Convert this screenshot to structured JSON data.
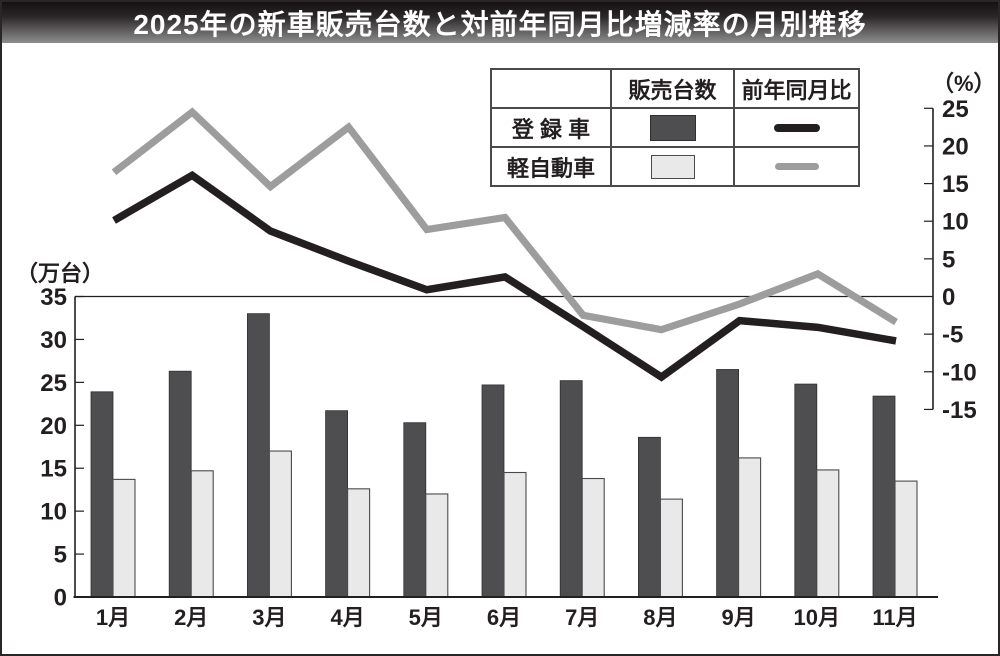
{
  "title": "2025年の新車販売台数と対前年同月比増減率の月別推移",
  "axes": {
    "left_unit": "（万台）",
    "right_unit": "（%）"
  },
  "legend": {
    "header_sales": "販売台数",
    "header_yoy": "前年同月比",
    "registered_label": "登 録 車",
    "kei_label": "軽自動車",
    "registered_bar_swatch": "dark-gray-bar",
    "kei_bar_swatch": "light-gray-bar",
    "registered_line_swatch": "black-line",
    "kei_line_swatch": "gray-line"
  },
  "colors": {
    "registered_bar": "#4e4e50",
    "kei_bar": "#e9e9e9",
    "registered_line": "#231f20",
    "kei_line": "#9d9d9d",
    "axis": "#231f20",
    "title_text": "#ffffff"
  },
  "chart_data": {
    "type": "bar+line combo",
    "title": "2025年の新車販売台数と対前年同月比増減率の月別推移",
    "categories": [
      "1月",
      "2月",
      "3月",
      "4月",
      "5月",
      "6月",
      "7月",
      "8月",
      "9月",
      "10月",
      "11月"
    ],
    "bar_series": [
      {
        "name": "登録車 販売台数",
        "unit": "万台",
        "color": "#4e4e50",
        "values": [
          23.9,
          26.3,
          33.0,
          21.7,
          20.3,
          24.7,
          25.2,
          18.6,
          26.5,
          24.8,
          23.4
        ]
      },
      {
        "name": "軽自動車 販売台数",
        "unit": "万台",
        "color": "#e9e9e9",
        "values": [
          13.7,
          14.7,
          17.0,
          12.6,
          12.0,
          14.5,
          13.8,
          11.4,
          16.2,
          14.8,
          13.5
        ]
      }
    ],
    "line_series": [
      {
        "name": "登録車 前年同月比",
        "unit": "%",
        "color": "#231f20",
        "values": [
          10.1,
          16.1,
          8.7,
          4.7,
          0.9,
          2.6,
          -4.0,
          -10.7,
          -3.2,
          -4.1,
          -5.9
        ]
      },
      {
        "name": "軽自動車 前年同月比",
        "unit": "%",
        "color": "#9d9d9d",
        "values": [
          16.5,
          24.5,
          14.6,
          22.5,
          8.9,
          10.5,
          -2.5,
          -4.4,
          -1.0,
          3.0,
          -3.4
        ]
      }
    ],
    "left_axis": {
      "label": "（万台）",
      "min": 0,
      "max": 35,
      "step": 5,
      "ticks": [
        0,
        5,
        10,
        15,
        20,
        25,
        30,
        35
      ]
    },
    "right_axis": {
      "label": "（%）",
      "min": -15,
      "max": 25,
      "step": 5,
      "ticks": [
        -15,
        -10,
        -5,
        0,
        5,
        10,
        15,
        20,
        25
      ]
    },
    "grid": false,
    "legend_position": "top-right"
  }
}
